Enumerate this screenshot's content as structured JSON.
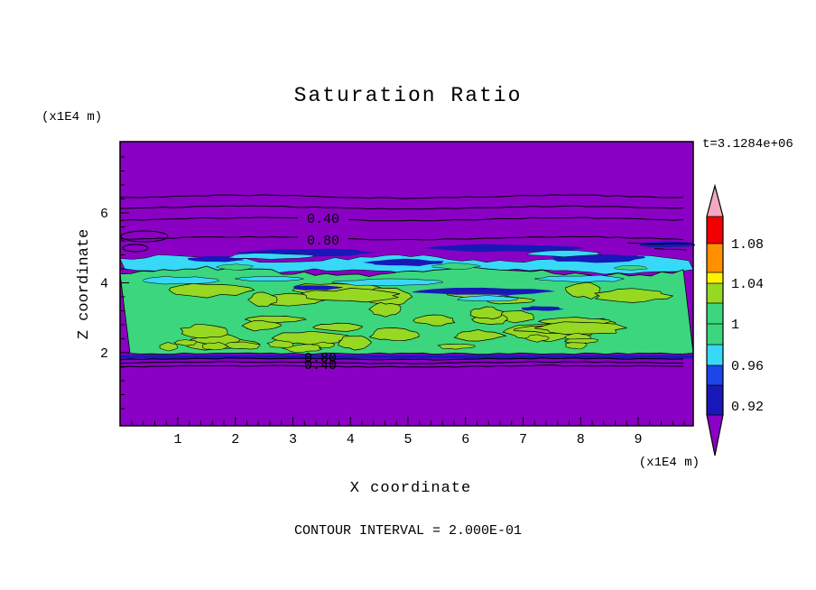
{
  "title": "Saturation Ratio",
  "time_label": "t=3.1284e+06",
  "axes": {
    "x_label": "X coordinate",
    "x_unit": "(x1E4 m)",
    "y_label": "Z coordinate",
    "y_unit": "(x1E4 m)",
    "x_ticks": [
      "1",
      "2",
      "3",
      "4",
      "5",
      "6",
      "7",
      "8",
      "9"
    ],
    "y_ticks": [
      "2",
      "4",
      "6"
    ]
  },
  "contour_note": "CONTOUR INTERVAL = 2.000E-01",
  "contour_labels": {
    "upper_a": "0.40",
    "upper_b": "0.80",
    "lower_a": "0.80",
    "lower_b": "0.40"
  },
  "colorbar": {
    "labels": [
      "1.08",
      "1.04",
      "1",
      "0.96",
      "0.92"
    ]
  },
  "colors": {
    "purple": "#8A00C4",
    "navy": "#1818B8",
    "blue": "#1C46E8",
    "cyan": "#38D8F8",
    "green": "#3CD67E",
    "chartreuse": "#96D822",
    "yellow": "#FFF200",
    "orange": "#FF9000",
    "red": "#F00000",
    "pink": "#F2A8C0",
    "axis": "#000000"
  },
  "chart_data": {
    "type": "heatmap",
    "subtype": "filled-contour",
    "title": "Saturation Ratio",
    "xlabel": "X coordinate (x1E4 m)",
    "ylabel": "Z coordinate (x1E4 m)",
    "xlim": [
      0,
      10
    ],
    "ylim": [
      0,
      8
    ],
    "x_tick_values": [
      1,
      2,
      3,
      4,
      5,
      6,
      7,
      8,
      9
    ],
    "y_tick_values": [
      2,
      4,
      6
    ],
    "time": "t=3.1284e+06",
    "contour_interval": 0.2,
    "line_contour_label_values": [
      0.4,
      0.8
    ],
    "colorbar_boundary_values": [
      1.08,
      1.04,
      1.0,
      0.96,
      0.92
    ],
    "colorbar_colors_top_to_bottom": [
      "pink",
      "red",
      "orange",
      "yellow",
      "chartreuse",
      "green",
      "cyan",
      "blue",
      "navy",
      "purple"
    ],
    "field_regions": [
      {
        "z_range": [
          5.0,
          8.0
        ],
        "value": "< 0.92",
        "appearance": "purple background with line contours labeled 0.40 and 0.80 around z = 5.5 - 6.2"
      },
      {
        "z_range": [
          4.3,
          5.0
        ],
        "value": "0.92 - 0.98",
        "appearance": "dark blue and cyan horizontal streaks"
      },
      {
        "z_range": [
          2.0,
          4.3
        ],
        "value": "~1.0 - 1.04",
        "appearance": "green band with yellow-green patches and black contour outlines"
      },
      {
        "z_range": [
          0.0,
          2.0
        ],
        "value": "< 0.92",
        "appearance": "purple background with line contours labeled 0.80 and 0.40 around z = 1.7 - 2.0"
      }
    ],
    "legend_position": "right-vertical-colorbar",
    "grid": false
  }
}
